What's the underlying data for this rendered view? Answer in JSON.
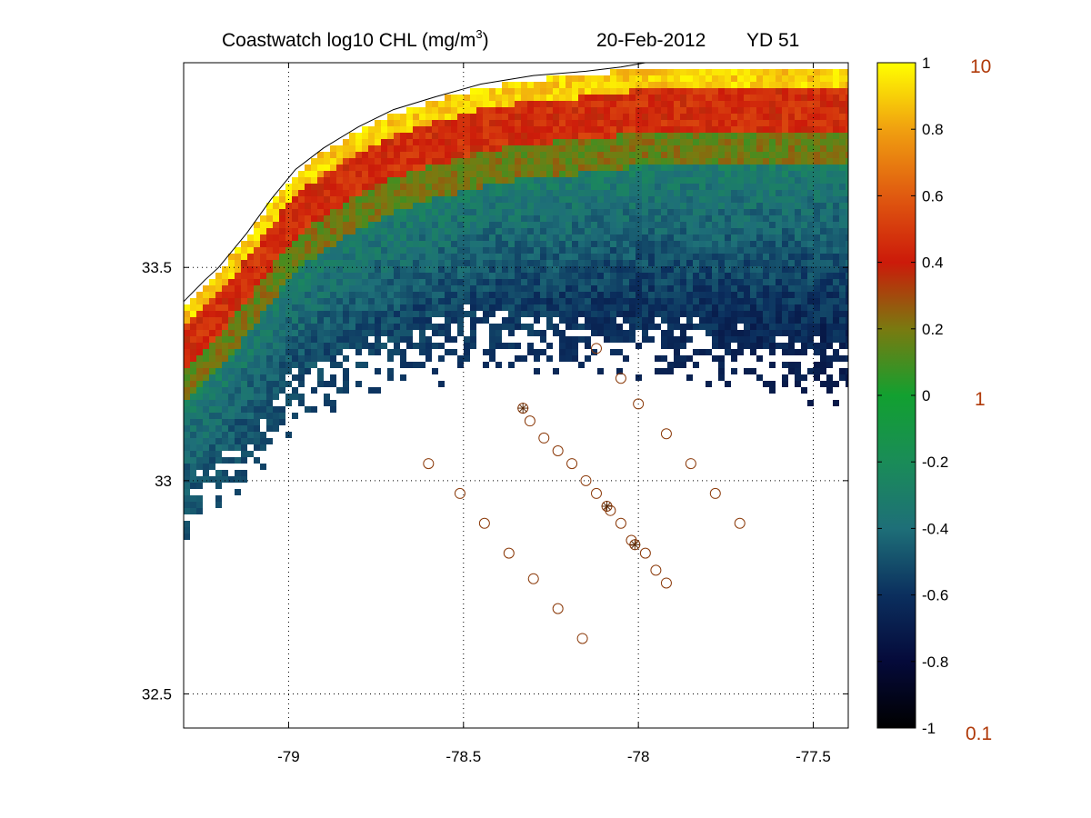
{
  "header": {
    "title_main": "Coastwatch  log10  CHL (mg/m",
    "title_sup": "3",
    "title_close": ")",
    "date": "20-Feb-2012",
    "yearday": "YD 51"
  },
  "map": {
    "lon_range": [
      -79.3,
      -77.4
    ],
    "lat_range": [
      32.42,
      33.98
    ],
    "x_ticks": [
      -79,
      -78.5,
      -78,
      -77.5
    ],
    "x_tick_labels": [
      "-79",
      "-78.5",
      "-78",
      "-77.5"
    ],
    "y_ticks": [
      32.5,
      33,
      33.5
    ],
    "y_tick_labels": [
      "32.5",
      "33",
      "33.5"
    ],
    "grid": "dotted",
    "coastline": [
      [
        -79.3,
        33.42
      ],
      [
        -79.24,
        33.47
      ],
      [
        -79.2,
        33.5
      ],
      [
        -79.12,
        33.58
      ],
      [
        -79.05,
        33.66
      ],
      [
        -78.98,
        33.73
      ],
      [
        -78.9,
        33.78
      ],
      [
        -78.8,
        33.83
      ],
      [
        -78.7,
        33.87
      ],
      [
        -78.58,
        33.9
      ],
      [
        -78.45,
        33.93
      ],
      [
        -78.3,
        33.95
      ],
      [
        -78.15,
        33.96
      ],
      [
        -78.05,
        33.97
      ],
      [
        -77.98,
        33.98
      ]
    ],
    "colormap_stops": [
      "#000000",
      "#050a3a",
      "#0b2f5e",
      "#1e6f78",
      "#1a8c58",
      "#12a030",
      "#7a7a10",
      "#cc1a0a",
      "#e05a10",
      "#f0a010",
      "#ffff00"
    ]
  },
  "chart_data": {
    "type": "scatter",
    "series": [
      {
        "marker": "circle",
        "points": [
          [
            -78.12,
            33.31
          ],
          [
            -78.05,
            33.24
          ],
          [
            -78.0,
            33.18
          ],
          [
            -77.92,
            33.11
          ],
          [
            -77.85,
            33.04
          ],
          [
            -77.78,
            32.97
          ],
          [
            -77.71,
            32.9
          ],
          [
            -78.6,
            33.04
          ],
          [
            -78.51,
            32.97
          ],
          [
            -78.44,
            32.9
          ],
          [
            -78.37,
            32.83
          ],
          [
            -78.3,
            32.77
          ],
          [
            -78.23,
            32.7
          ],
          [
            -78.16,
            32.63
          ],
          [
            -78.33,
            33.17
          ],
          [
            -78.31,
            33.14
          ],
          [
            -78.27,
            33.1
          ],
          [
            -78.23,
            33.07
          ],
          [
            -78.19,
            33.04
          ],
          [
            -78.15,
            33.0
          ],
          [
            -78.12,
            32.97
          ],
          [
            -78.09,
            32.94
          ],
          [
            -78.08,
            32.93
          ],
          [
            -78.05,
            32.9
          ],
          [
            -78.02,
            32.86
          ],
          [
            -78.01,
            32.85
          ],
          [
            -77.98,
            32.83
          ],
          [
            -77.95,
            32.79
          ],
          [
            -77.92,
            32.76
          ]
        ]
      },
      {
        "marker": "asterisk",
        "points": [
          [
            -78.33,
            33.17
          ],
          [
            -78.09,
            32.94
          ],
          [
            -78.01,
            32.85
          ]
        ]
      }
    ]
  },
  "colorbar": {
    "min": -1,
    "max": 1,
    "tick_labels": [
      "1",
      "0.8",
      "0.6",
      "0.4",
      "0.2",
      "0",
      "-0.2",
      "-0.4",
      "-0.6",
      "-0.8",
      "-1"
    ],
    "linear_labels": [
      "10",
      "1",
      "0.1"
    ]
  }
}
